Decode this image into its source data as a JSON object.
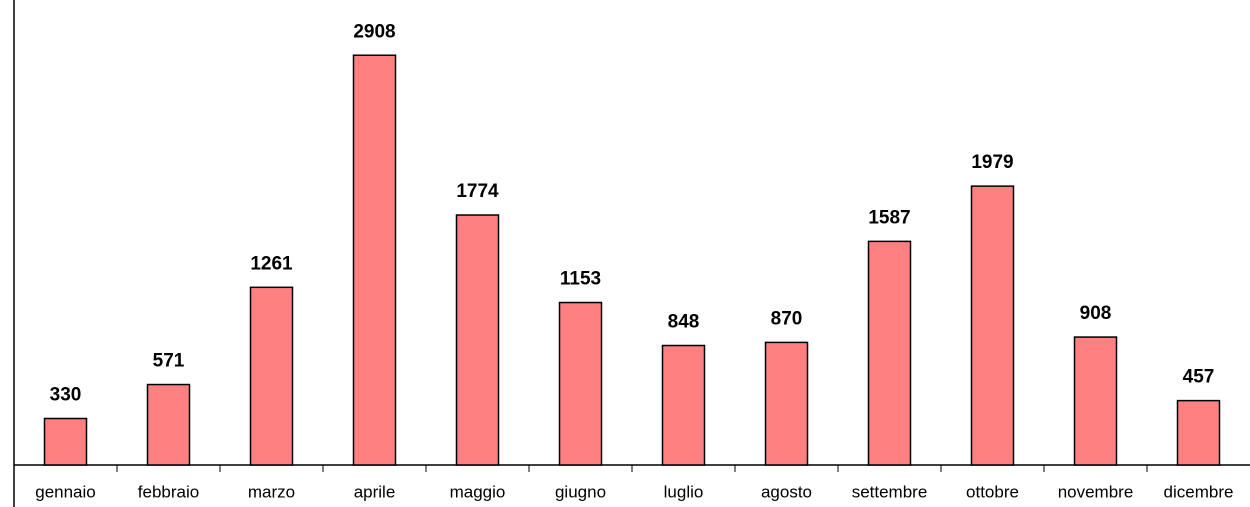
{
  "chart_data": {
    "type": "bar",
    "categories": [
      "gennaio",
      "febbraio",
      "marzo",
      "aprile",
      "maggio",
      "giugno",
      "luglio",
      "agosto",
      "settembre",
      "ottobre",
      "novembre",
      "dicembre"
    ],
    "values": [
      330,
      571,
      1261,
      2908,
      1774,
      1153,
      848,
      870,
      1587,
      1979,
      908,
      457
    ],
    "color": "#ff8080",
    "ylim": [
      0,
      3300
    ]
  }
}
